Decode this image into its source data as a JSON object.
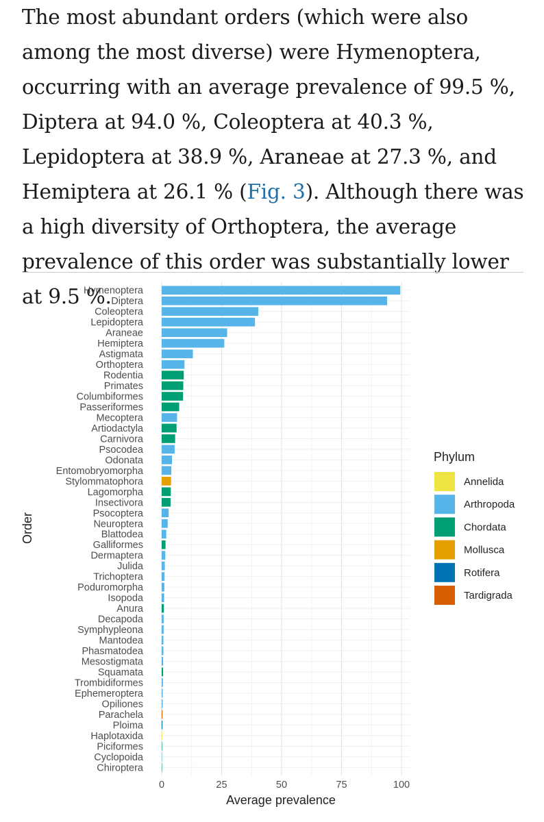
{
  "paragraph": {
    "text_before_link": "The most abundant orders (which were also among the most diverse) were Hymenoptera, occurring with an average prevalence of 99.5 %, Diptera at 94.0 %, Coleoptera at 40.3 %, Lepidoptera at 38.9 %, Araneae at 27.3 %, and Hemiptera at 26.1 % (",
    "link_text": "Fig. 3",
    "text_after_link": "). Although there was a high diversity of Orthoptera, the average prevalence of this order was substantially lower at 9.5 %."
  },
  "chart_data": {
    "type": "bar",
    "orientation": "horizontal",
    "xlabel": "Average prevalence",
    "ylabel": "Order",
    "xlim": [
      0,
      100
    ],
    "xticks": [
      "0",
      "25",
      "50",
      "75",
      "100"
    ],
    "grid": true,
    "legend": {
      "title": "Phylum",
      "placement": "right",
      "entries": [
        {
          "name": "Annelida",
          "color": "#f0e442"
        },
        {
          "name": "Arthropoda",
          "color": "#56b4e9"
        },
        {
          "name": "Chordata",
          "color": "#009e73"
        },
        {
          "name": "Mollusca",
          "color": "#e69f00"
        },
        {
          "name": "Rotifera",
          "color": "#0072b2"
        },
        {
          "name": "Tardigrada",
          "color": "#d55e00"
        }
      ]
    },
    "bars": [
      {
        "category": "Hymenoptera",
        "value": 99.5,
        "phylum": "Arthropoda"
      },
      {
        "category": "Diptera",
        "value": 94.0,
        "phylum": "Arthropoda"
      },
      {
        "category": "Coleoptera",
        "value": 40.3,
        "phylum": "Arthropoda"
      },
      {
        "category": "Lepidoptera",
        "value": 38.9,
        "phylum": "Arthropoda"
      },
      {
        "category": "Araneae",
        "value": 27.3,
        "phylum": "Arthropoda"
      },
      {
        "category": "Hemiptera",
        "value": 26.1,
        "phylum": "Arthropoda"
      },
      {
        "category": "Astigmata",
        "value": 13.0,
        "phylum": "Arthropoda"
      },
      {
        "category": "Orthoptera",
        "value": 9.5,
        "phylum": "Arthropoda"
      },
      {
        "category": "Rodentia",
        "value": 9.2,
        "phylum": "Chordata"
      },
      {
        "category": "Primates",
        "value": 9.0,
        "phylum": "Chordata"
      },
      {
        "category": "Columbiformes",
        "value": 8.9,
        "phylum": "Chordata"
      },
      {
        "category": "Passeriformes",
        "value": 7.3,
        "phylum": "Chordata"
      },
      {
        "category": "Mecoptera",
        "value": 6.4,
        "phylum": "Arthropoda"
      },
      {
        "category": "Artiodactyla",
        "value": 6.2,
        "phylum": "Chordata"
      },
      {
        "category": "Carnivora",
        "value": 5.6,
        "phylum": "Chordata"
      },
      {
        "category": "Psocodea",
        "value": 5.4,
        "phylum": "Arthropoda"
      },
      {
        "category": "Odonata",
        "value": 4.3,
        "phylum": "Arthropoda"
      },
      {
        "category": "Entomobryomorpha",
        "value": 4.0,
        "phylum": "Arthropoda"
      },
      {
        "category": "Stylommatophora",
        "value": 3.9,
        "phylum": "Mollusca"
      },
      {
        "category": "Lagomorpha",
        "value": 3.8,
        "phylum": "Chordata"
      },
      {
        "category": "Insectivora",
        "value": 3.7,
        "phylum": "Chordata"
      },
      {
        "category": "Psocoptera",
        "value": 2.9,
        "phylum": "Arthropoda"
      },
      {
        "category": "Neuroptera",
        "value": 2.5,
        "phylum": "Arthropoda"
      },
      {
        "category": "Blattodea",
        "value": 1.9,
        "phylum": "Arthropoda"
      },
      {
        "category": "Galliformes",
        "value": 1.6,
        "phylum": "Chordata"
      },
      {
        "category": "Dermaptera",
        "value": 1.5,
        "phylum": "Arthropoda"
      },
      {
        "category": "Julida",
        "value": 1.3,
        "phylum": "Arthropoda"
      },
      {
        "category": "Trichoptera",
        "value": 1.2,
        "phylum": "Arthropoda"
      },
      {
        "category": "Poduromorpha",
        "value": 1.1,
        "phylum": "Arthropoda"
      },
      {
        "category": "Isopoda",
        "value": 1.0,
        "phylum": "Arthropoda"
      },
      {
        "category": "Anura",
        "value": 0.9,
        "phylum": "Chordata"
      },
      {
        "category": "Decapoda",
        "value": 0.8,
        "phylum": "Arthropoda"
      },
      {
        "category": "Symphypleona",
        "value": 0.8,
        "phylum": "Arthropoda"
      },
      {
        "category": "Mantodea",
        "value": 0.7,
        "phylum": "Arthropoda"
      },
      {
        "category": "Phasmatodea",
        "value": 0.7,
        "phylum": "Arthropoda"
      },
      {
        "category": "Mesostigmata",
        "value": 0.6,
        "phylum": "Arthropoda"
      },
      {
        "category": "Squamata",
        "value": 0.6,
        "phylum": "Chordata"
      },
      {
        "category": "Trombidiformes",
        "value": 0.5,
        "phylum": "Arthropoda"
      },
      {
        "category": "Ephemeroptera",
        "value": 0.4,
        "phylum": "Arthropoda"
      },
      {
        "category": "Opiliones",
        "value": 0.4,
        "phylum": "Arthropoda"
      },
      {
        "category": "Parachela",
        "value": 0.3,
        "phylum": "Tardigrada"
      },
      {
        "category": "Ploima",
        "value": 0.3,
        "phylum": "Rotifera"
      },
      {
        "category": "Haplotaxida",
        "value": 0.2,
        "phylum": "Annelida"
      },
      {
        "category": "Piciformes",
        "value": 0.2,
        "phylum": "Chordata"
      },
      {
        "category": "Cyclopoida",
        "value": 0.15,
        "phylum": "Arthropoda"
      },
      {
        "category": "Chiroptera",
        "value": 0.1,
        "phylum": "Chordata"
      }
    ]
  }
}
